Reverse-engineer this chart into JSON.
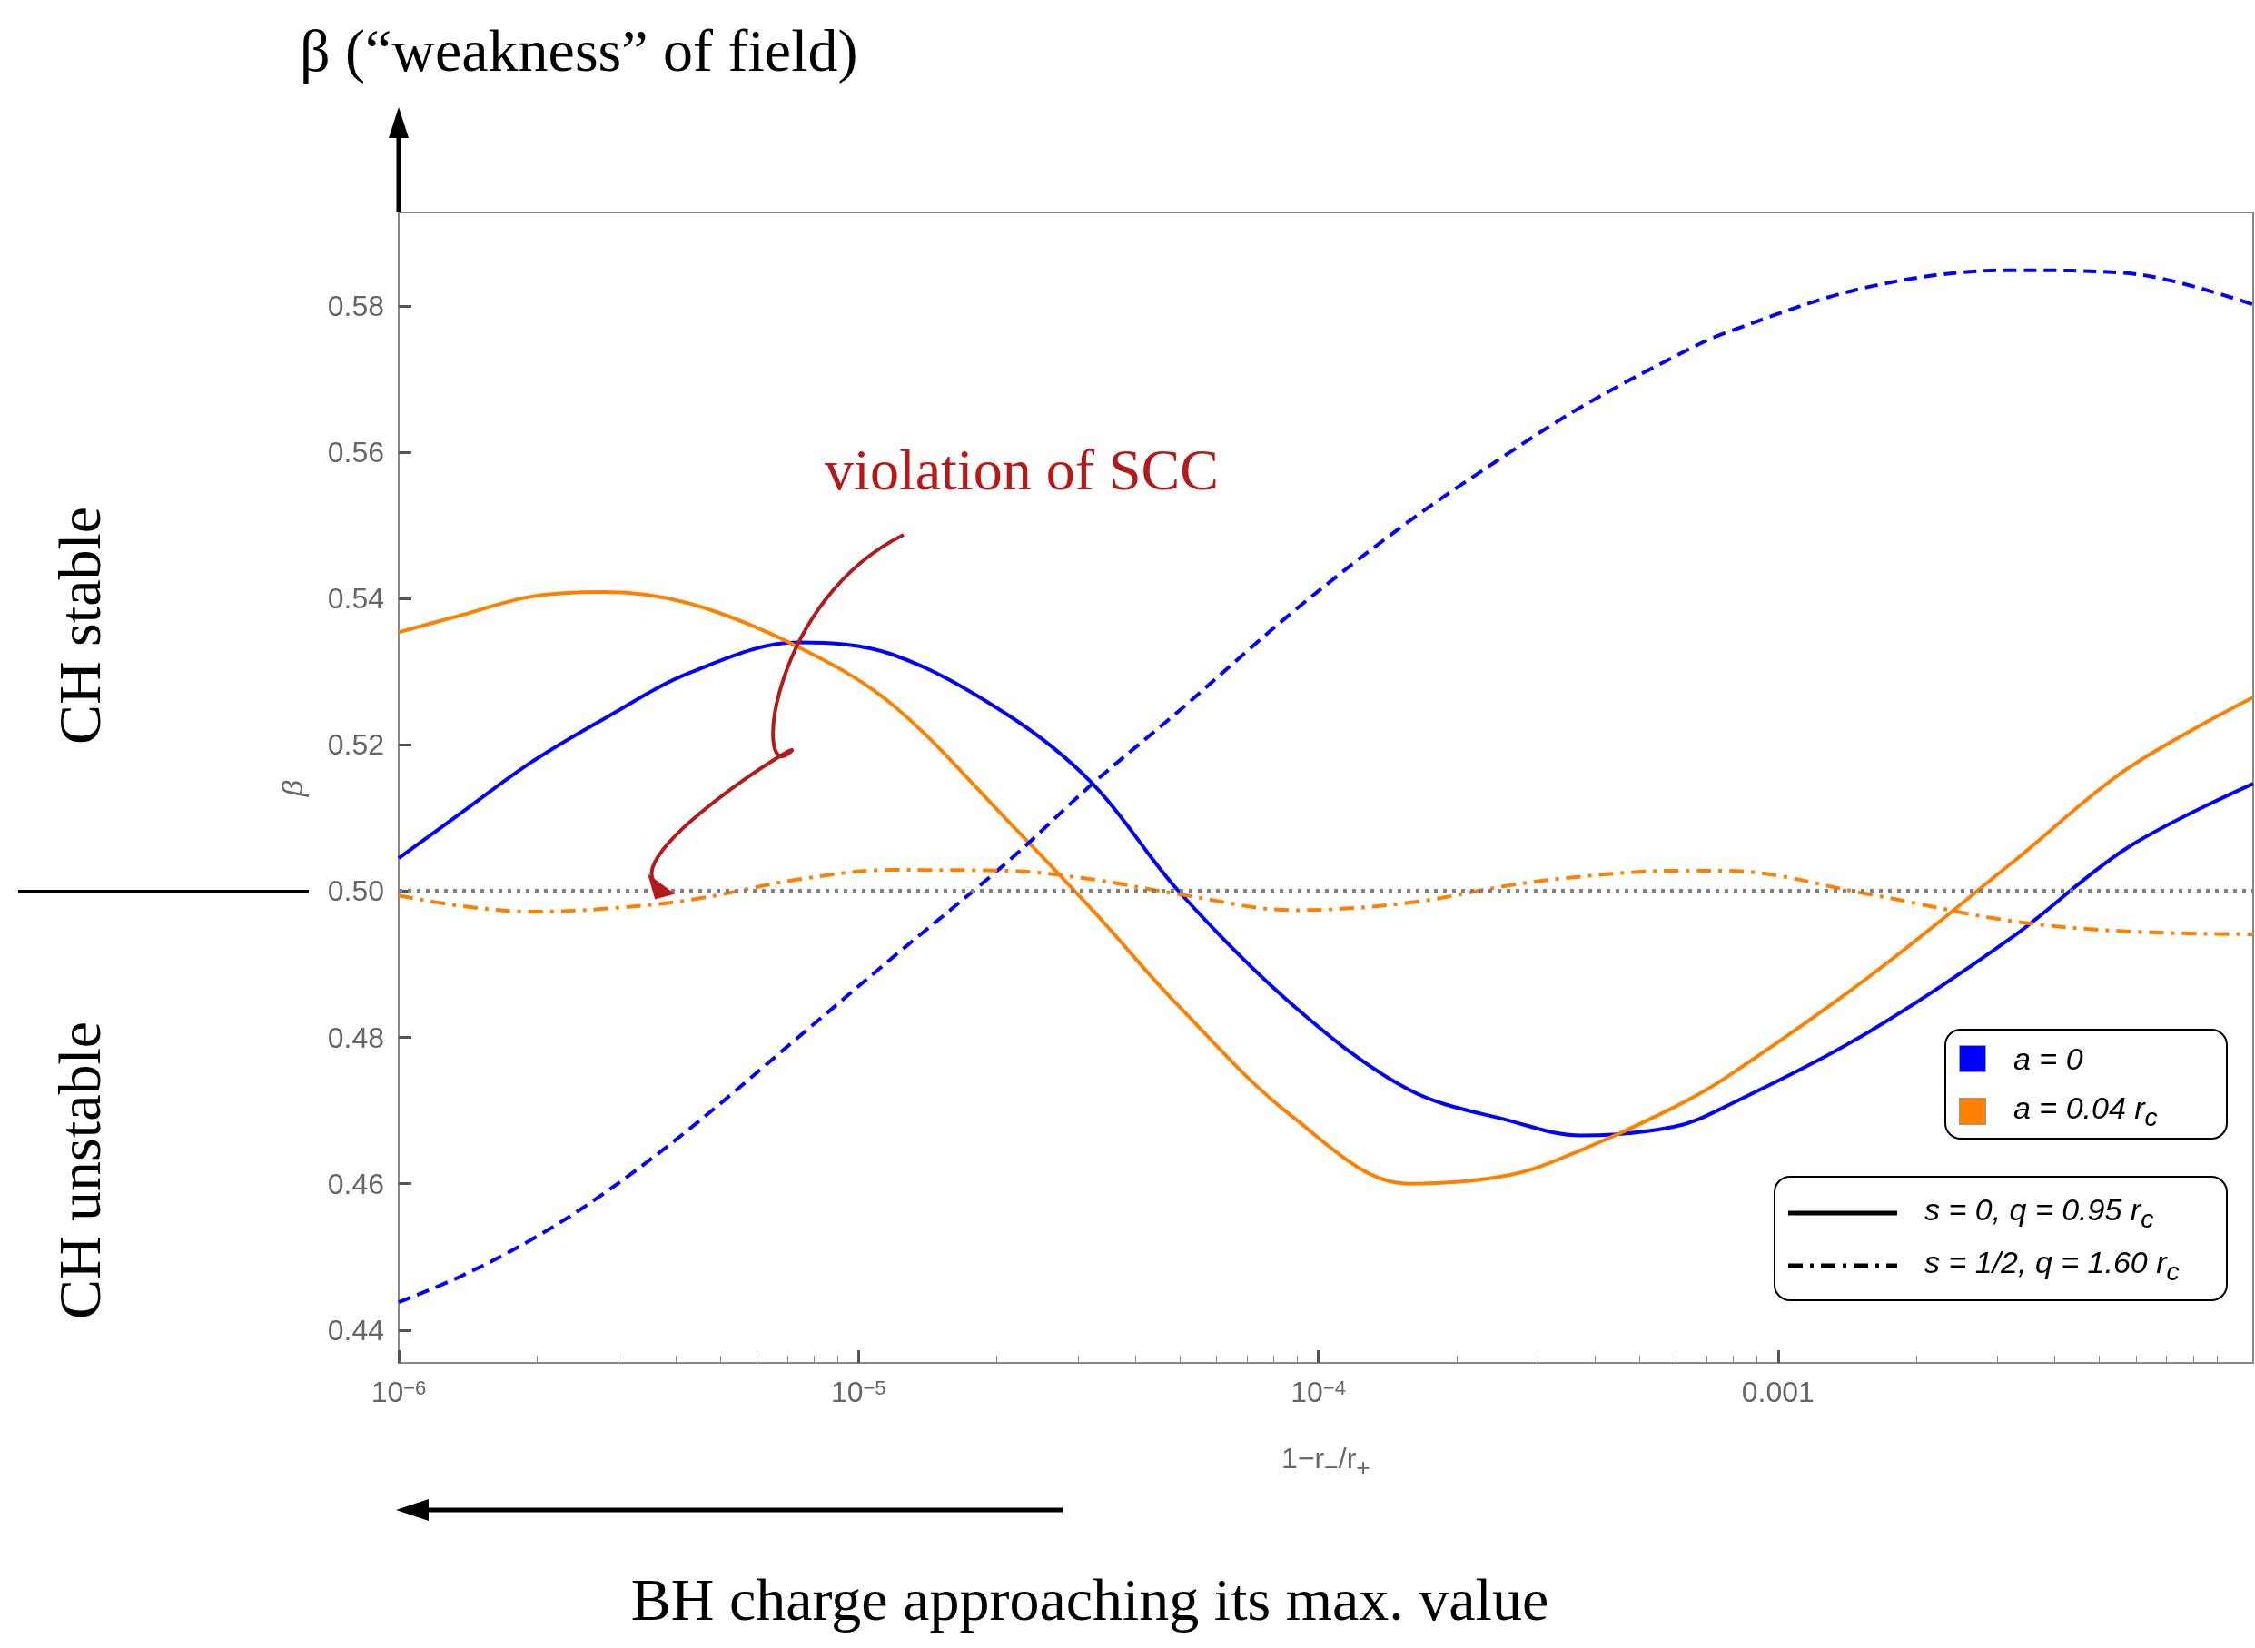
{
  "chart_data": {
    "type": "line",
    "title": "β (“weakness” of field)",
    "xlabel": "1−r$_{−}$/r$_{+}$",
    "ylabel": "β",
    "x": [
      1e-06,
      1.36e-06,
      1.95e-06,
      2.8e-06,
      4.31e-06,
      7.39e-06,
      1.18e-05,
      2.1e-05,
      3.23e-05,
      4.97e-05,
      8.85e-05,
      0.000157,
      0.000261,
      0.000373,
      0.000596,
      0.000766,
      0.00157,
      0.00323,
      0.00574,
      0.0108
    ],
    "series": [
      {
        "color": "#0000ff",
        "line_style": "solid",
        "values": [
          0.5045,
          0.5106,
          0.5177,
          0.5236,
          0.5299,
          0.534,
          0.5324,
          0.5242,
          0.5147,
          0.5,
          0.4843,
          0.4729,
          0.4686,
          0.4666,
          0.4678,
          0.4705,
          0.4807,
          0.4937,
          0.5059,
          0.5147
        ]
      },
      {
        "color": "#ff8000",
        "line_style": "solid",
        "values": [
          0.5354,
          0.5377,
          0.5403,
          0.5409,
          0.5393,
          0.5334,
          0.5256,
          0.5098,
          0.4974,
          0.4843,
          0.469,
          0.46,
          0.4612,
          0.4646,
          0.4705,
          0.4744,
          0.4882,
          0.5039,
          0.5167,
          0.5265
        ]
      },
      {
        "color": "#0000ff",
        "line_style": "dashed",
        "values": [
          0.4438,
          0.4473,
          0.4524,
          0.4587,
          0.4676,
          0.48,
          0.4908,
          0.5039,
          0.5147,
          0.5246,
          0.5383,
          0.5505,
          0.56,
          0.5662,
          0.5731,
          0.5763,
          0.5826,
          0.5849,
          0.5845,
          0.5802
        ]
      },
      {
        "color": "#ff8000",
        "line_style": "dashdot",
        "values": [
          0.4994,
          0.498,
          0.4972,
          0.4976,
          0.4988,
          0.5016,
          0.5029,
          0.5028,
          0.5016,
          0.4996,
          0.4974,
          0.4984,
          0.5008,
          0.502,
          0.5028,
          0.5028,
          0.4996,
          0.4959,
          0.4945,
          0.4941
        ]
      }
    ],
    "log": "x",
    "xlim": [
      1e-06,
      0.0108
    ],
    "xticks": [
      {
        "value": 1e-06,
        "label": "10$^{−6}$"
      },
      {
        "value": 1e-05,
        "label": "10$^{−5}$"
      },
      {
        "value": 0.0001,
        "label": "10$^{−4}$"
      },
      {
        "value": 0.001,
        "label": "0.001"
      }
    ],
    "ylim": [
      0.4355,
      0.5928
    ],
    "yticks": [
      {
        "value": 0.44,
        "label": "0.44"
      },
      {
        "value": 0.46,
        "label": "0.46"
      },
      {
        "value": 0.48,
        "label": "0.48"
      },
      {
        "value": 0.5,
        "label": "0.50"
      },
      {
        "value": 0.52,
        "label": "0.52"
      },
      {
        "value": 0.54,
        "label": "0.54"
      },
      {
        "value": 0.56,
        "label": "0.56"
      },
      {
        "value": 0.58,
        "label": "0.58"
      }
    ],
    "ref_lines": [
      {
        "axis": "y",
        "value": 0.5,
        "color": "#808080",
        "line_style": "dotted"
      }
    ],
    "annotations": [
      "CH stable",
      "CH unstable",
      "BH charge approaching its max. value",
      "violation of SCC",
      "a = 0",
      "a = 0.04 r$_{c}$",
      "s = 0, q = 0.95 r$_{c}$",
      "s = 1/2, q = 1.60 r$_{c}$"
    ],
    "grid": false,
    "marker": "none"
  }
}
